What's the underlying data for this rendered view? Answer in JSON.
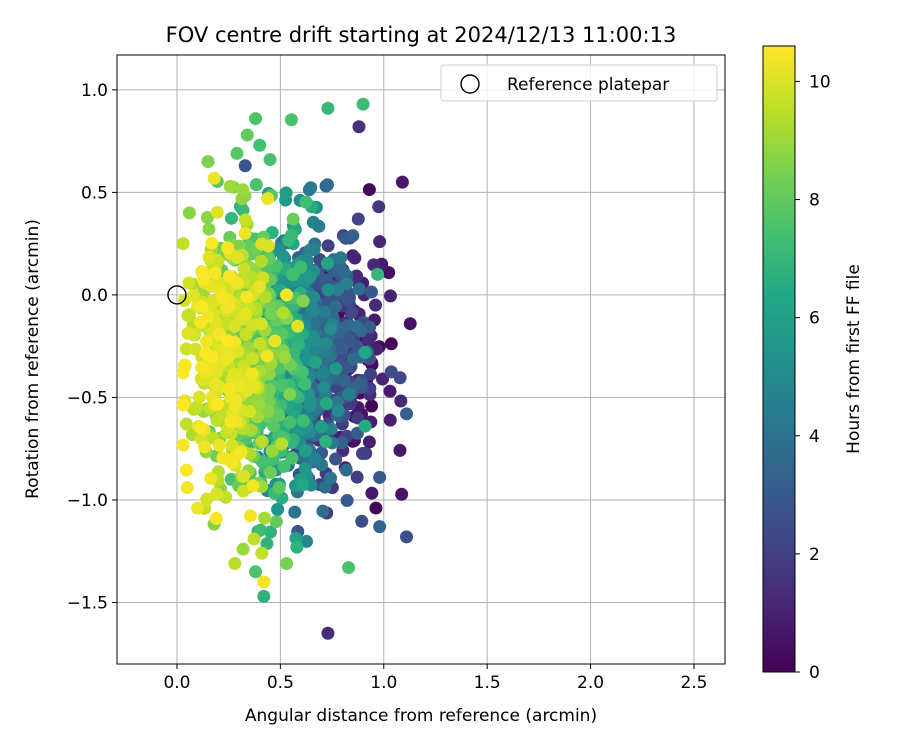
{
  "chart_data": {
    "type": "scatter",
    "title": "FOV centre drift starting at 2024/12/13 11:00:13",
    "xlabel": "Angular distance from reference (arcmin)",
    "ylabel": "Rotation from reference (arcmin)",
    "xlim": [
      -0.29,
      2.65
    ],
    "ylim": [
      -1.8,
      1.17
    ],
    "xticks": [
      0.0,
      0.5,
      1.0,
      1.5,
      2.0,
      2.5
    ],
    "xtick_labels": [
      "0.0",
      "0.5",
      "1.0",
      "1.5",
      "2.0",
      "2.5"
    ],
    "yticks": [
      1.0,
      0.5,
      0.0,
      -0.5,
      -1.0,
      -1.5
    ],
    "ytick_labels": [
      "1.0",
      "0.5",
      "0.0",
      "−0.5",
      "−1.0",
      "−1.5"
    ],
    "grid": true,
    "legend": {
      "placement": "top-right",
      "entries": [
        "Reference platepar"
      ]
    },
    "reference_point": {
      "label": "Reference platepar",
      "x": 0.0,
      "y": 0.0,
      "marker": "open-circle"
    },
    "colormap": "viridis",
    "colorbar": {
      "label": "Hours from first FF file",
      "range": [
        0,
        10.6
      ],
      "ticks": [
        0,
        2,
        4,
        6,
        8,
        10
      ],
      "tick_labels": [
        "0",
        "2",
        "4",
        "6",
        "8",
        "10"
      ]
    },
    "colors": {
      "viridis": [
        "#440154",
        "#482475",
        "#414487",
        "#355f8d",
        "#2a788e",
        "#21918c",
        "#22a884",
        "#44bf70",
        "#7ad151",
        "#bddf26",
        "#fde725"
      ]
    },
    "point_count": 1500,
    "distribution": {
      "hour_range": [
        0,
        10.6
      ],
      "x_trend_start": 0.9,
      "x_trend_end": 0.2,
      "y_center": -0.3
    },
    "points": [
      {
        "x": 0.73,
        "y": 0.91,
        "h": 7.0
      },
      {
        "x": 0.9,
        "y": 0.93,
        "h": 7.2
      },
      {
        "x": 0.88,
        "y": 0.82,
        "h": 1.5
      },
      {
        "x": 1.09,
        "y": 0.55,
        "h": 0.7
      },
      {
        "x": 0.38,
        "y": 0.86,
        "h": 7.6
      },
      {
        "x": 0.34,
        "y": 0.78,
        "h": 8.0
      },
      {
        "x": 0.4,
        "y": 0.73,
        "h": 7.4
      },
      {
        "x": 0.15,
        "y": 0.65,
        "h": 8.5
      },
      {
        "x": 0.29,
        "y": 0.69,
        "h": 7.8
      },
      {
        "x": 0.45,
        "y": 0.66,
        "h": 7.5
      },
      {
        "x": 0.33,
        "y": 0.63,
        "h": 2.8
      },
      {
        "x": 0.98,
        "y": 0.26,
        "h": 1.2
      },
      {
        "x": 0.86,
        "y": 0.18,
        "h": 1.0
      },
      {
        "x": 0.99,
        "y": 0.15,
        "h": 0.8
      },
      {
        "x": 0.97,
        "y": 0.1,
        "h": 7.0
      },
      {
        "x": 0.96,
        "y": -0.05,
        "h": 1.3
      },
      {
        "x": 1.03,
        "y": -0.47,
        "h": 0.8
      },
      {
        "x": 1.11,
        "y": -0.58,
        "h": 3.2
      },
      {
        "x": 0.98,
        "y": -0.89,
        "h": 3.0
      },
      {
        "x": 0.98,
        "y": -1.13,
        "h": 3.4
      },
      {
        "x": 1.11,
        "y": -1.18,
        "h": 2.6
      },
      {
        "x": 0.83,
        "y": -1.33,
        "h": 7.6
      },
      {
        "x": 0.73,
        "y": -1.65,
        "h": 1.3
      },
      {
        "x": 0.42,
        "y": -1.47,
        "h": 6.8
      },
      {
        "x": 0.42,
        "y": -1.4,
        "h": 10.4
      },
      {
        "x": 0.38,
        "y": -1.35,
        "h": 7.6
      },
      {
        "x": 0.28,
        "y": -1.31,
        "h": 9.5
      },
      {
        "x": 0.53,
        "y": -1.31,
        "h": 8.4
      },
      {
        "x": 0.41,
        "y": -1.26,
        "h": 9.6
      },
      {
        "x": 0.32,
        "y": -1.24,
        "h": 9.0
      },
      {
        "x": 0.58,
        "y": -1.23,
        "h": 6.8
      },
      {
        "x": 0.05,
        "y": -0.94,
        "h": 10.4
      },
      {
        "x": 0.1,
        "y": -1.04,
        "h": 10.3
      },
      {
        "x": 0.19,
        "y": -1.09,
        "h": 10.5
      },
      {
        "x": 0.91,
        "y": -0.64,
        "h": 6.5
      },
      {
        "x": 0.91,
        "y": -0.28,
        "h": 6.2
      },
      {
        "x": 0.06,
        "y": 0.4,
        "h": 8.7
      },
      {
        "x": 0.03,
        "y": 0.25,
        "h": 9.6
      },
      {
        "x": 0.53,
        "y": 0.0,
        "h": 10.5
      }
    ]
  }
}
